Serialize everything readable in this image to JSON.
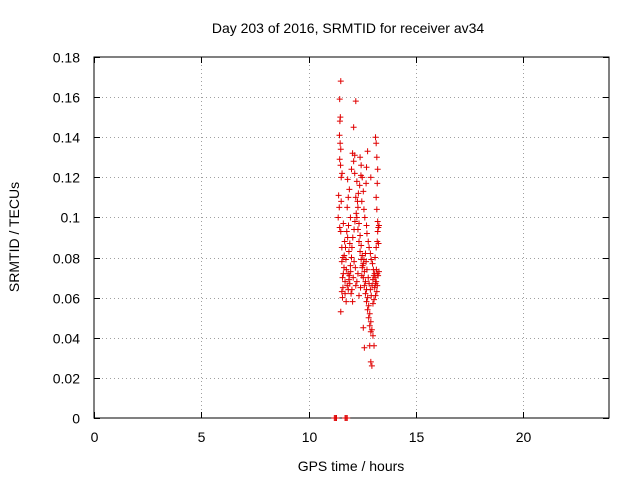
{
  "chart_data": {
    "type": "scatter",
    "title": "Day 203 of 2016, SRMTID for receiver av34",
    "xlabel": "GPS time / hours",
    "ylabel": "SRMTID / TECUs",
    "xlim": [
      0,
      24
    ],
    "ylim": [
      0,
      0.18
    ],
    "x_ticks": [
      0,
      5,
      10,
      15,
      20
    ],
    "x_tick_labels": [
      "0",
      "5",
      "10",
      "15",
      "20"
    ],
    "y_ticks": [
      0,
      0.02,
      0.04,
      0.06,
      0.08,
      0.1,
      0.12,
      0.14,
      0.16,
      0.18
    ],
    "y_tick_labels": [
      "0",
      "0.02",
      "0.04",
      "0.06",
      "0.08",
      "0.1",
      "0.12",
      "0.14",
      "0.16",
      "0.18"
    ],
    "grid": true,
    "marker": "+",
    "marker_color": "#e00000",
    "series": [
      {
        "name": "SRMTID",
        "points": [
          [
            11.2,
            0.0
          ],
          [
            11.25,
            0.0
          ],
          [
            11.3,
            0.0
          ],
          [
            11.7,
            0.0
          ],
          [
            11.75,
            0.0
          ],
          [
            11.8,
            0.0
          ],
          [
            11.5,
            0.168
          ],
          [
            11.45,
            0.159
          ],
          [
            11.48,
            0.15
          ],
          [
            11.46,
            0.148
          ],
          [
            11.44,
            0.141
          ],
          [
            11.47,
            0.137
          ],
          [
            11.5,
            0.134
          ],
          [
            11.45,
            0.129
          ],
          [
            11.49,
            0.126
          ],
          [
            11.52,
            0.12
          ],
          [
            11.4,
            0.111
          ],
          [
            11.43,
            0.105
          ],
          [
            11.38,
            0.1
          ],
          [
            11.45,
            0.095
          ],
          [
            11.5,
            0.093
          ],
          [
            11.55,
            0.085
          ],
          [
            11.6,
            0.08
          ],
          [
            11.55,
            0.078
          ],
          [
            11.65,
            0.075
          ],
          [
            11.62,
            0.072
          ],
          [
            11.58,
            0.07
          ],
          [
            11.7,
            0.068
          ],
          [
            11.6,
            0.065
          ],
          [
            11.55,
            0.063
          ],
          [
            11.58,
            0.06
          ],
          [
            11.5,
            0.053
          ],
          [
            11.75,
            0.058
          ],
          [
            11.7,
            0.062
          ],
          [
            11.8,
            0.066
          ],
          [
            11.85,
            0.064
          ],
          [
            11.9,
            0.071
          ],
          [
            11.95,
            0.076
          ],
          [
            12.0,
            0.08
          ],
          [
            11.88,
            0.083
          ],
          [
            11.92,
            0.087
          ],
          [
            11.82,
            0.09
          ],
          [
            11.78,
            0.093
          ],
          [
            11.86,
            0.096
          ],
          [
            11.95,
            0.1
          ],
          [
            11.8,
            0.105
          ],
          [
            11.85,
            0.11
          ],
          [
            11.9,
            0.114
          ],
          [
            11.82,
            0.119
          ],
          [
            12.0,
            0.124
          ],
          [
            12.1,
            0.128
          ],
          [
            12.05,
            0.132
          ],
          [
            12.15,
            0.131
          ],
          [
            12.1,
            0.145
          ],
          [
            12.2,
            0.158
          ],
          [
            12.15,
            0.122
          ],
          [
            12.25,
            0.118
          ],
          [
            12.2,
            0.11
          ],
          [
            12.3,
            0.105
          ],
          [
            12.25,
            0.1
          ],
          [
            12.35,
            0.097
          ],
          [
            12.3,
            0.094
          ],
          [
            12.4,
            0.091
          ],
          [
            12.35,
            0.088
          ],
          [
            12.45,
            0.086
          ],
          [
            12.4,
            0.083
          ],
          [
            12.5,
            0.081
          ],
          [
            12.45,
            0.079
          ],
          [
            12.55,
            0.077
          ],
          [
            12.5,
            0.075
          ],
          [
            12.6,
            0.073
          ],
          [
            12.55,
            0.07
          ],
          [
            12.65,
            0.068
          ],
          [
            12.6,
            0.066
          ],
          [
            12.7,
            0.064
          ],
          [
            12.65,
            0.062
          ],
          [
            12.75,
            0.06
          ],
          [
            12.7,
            0.058
          ],
          [
            12.8,
            0.056
          ],
          [
            12.75,
            0.054
          ],
          [
            12.85,
            0.052
          ],
          [
            12.8,
            0.05
          ],
          [
            12.9,
            0.048
          ],
          [
            12.85,
            0.046
          ],
          [
            12.95,
            0.044
          ],
          [
            12.9,
            0.043
          ],
          [
            13.0,
            0.041
          ],
          [
            12.55,
            0.045
          ],
          [
            12.6,
            0.035
          ],
          [
            12.85,
            0.036
          ],
          [
            12.9,
            0.028
          ],
          [
            12.95,
            0.026
          ],
          [
            13.05,
            0.036
          ],
          [
            12.4,
            0.13
          ],
          [
            12.45,
            0.126
          ],
          [
            12.5,
            0.12
          ],
          [
            12.55,
            0.113
          ],
          [
            12.48,
            0.108
          ],
          [
            12.58,
            0.104
          ],
          [
            12.62,
            0.1
          ],
          [
            12.7,
            0.096
          ],
          [
            12.72,
            0.092
          ],
          [
            12.78,
            0.088
          ],
          [
            12.82,
            0.085
          ],
          [
            12.88,
            0.082
          ],
          [
            12.92,
            0.079
          ],
          [
            12.98,
            0.077
          ],
          [
            13.02,
            0.074
          ],
          [
            13.08,
            0.072
          ],
          [
            13.1,
            0.07
          ],
          [
            13.15,
            0.068
          ],
          [
            13.2,
            0.066
          ],
          [
            13.18,
            0.063
          ],
          [
            13.12,
            0.061
          ],
          [
            13.05,
            0.059
          ],
          [
            13.0,
            0.057
          ],
          [
            13.1,
            0.08
          ],
          [
            13.15,
            0.085
          ],
          [
            13.2,
            0.088
          ],
          [
            13.25,
            0.095
          ],
          [
            13.22,
            0.098
          ],
          [
            13.18,
            0.104
          ],
          [
            13.15,
            0.11
          ],
          [
            13.2,
            0.117
          ],
          [
            13.22,
            0.124
          ],
          [
            13.18,
            0.13
          ],
          [
            13.15,
            0.137
          ],
          [
            13.12,
            0.14
          ],
          [
            12.7,
            0.125
          ],
          [
            12.75,
            0.133
          ],
          [
            12.68,
            0.117
          ],
          [
            12.9,
            0.12
          ],
          [
            12.3,
            0.072
          ],
          [
            12.25,
            0.068
          ],
          [
            12.2,
            0.066
          ],
          [
            12.18,
            0.075
          ],
          [
            12.12,
            0.078
          ],
          [
            12.08,
            0.07
          ],
          [
            12.02,
            0.064
          ],
          [
            11.98,
            0.062
          ],
          [
            12.05,
            0.058
          ],
          [
            12.35,
            0.061
          ],
          [
            12.42,
            0.065
          ],
          [
            12.48,
            0.071
          ],
          [
            12.52,
            0.076
          ],
          [
            12.58,
            0.079
          ],
          [
            12.65,
            0.082
          ],
          [
            12.68,
            0.078
          ],
          [
            12.72,
            0.074
          ],
          [
            12.78,
            0.07
          ],
          [
            12.82,
            0.067
          ],
          [
            12.88,
            0.064
          ],
          [
            12.92,
            0.061
          ],
          [
            12.96,
            0.066
          ],
          [
            13.0,
            0.069
          ],
          [
            13.04,
            0.071
          ],
          [
            13.08,
            0.065
          ],
          [
            13.12,
            0.067
          ],
          [
            13.16,
            0.074
          ],
          [
            13.2,
            0.072
          ],
          [
            13.24,
            0.071
          ],
          [
            13.28,
            0.073
          ],
          [
            13.26,
            0.087
          ],
          [
            13.22,
            0.093
          ],
          [
            13.28,
            0.096
          ],
          [
            11.62,
            0.097
          ],
          [
            11.68,
            0.088
          ],
          [
            11.72,
            0.085
          ],
          [
            11.66,
            0.081
          ],
          [
            11.74,
            0.079
          ],
          [
            11.76,
            0.074
          ],
          [
            11.84,
            0.072
          ],
          [
            11.88,
            0.069
          ],
          [
            11.92,
            0.067
          ],
          [
            11.96,
            0.073
          ],
          [
            12.02,
            0.085
          ],
          [
            12.06,
            0.09
          ],
          [
            12.12,
            0.094
          ],
          [
            12.16,
            0.098
          ],
          [
            12.22,
            0.102
          ],
          [
            12.28,
            0.108
          ],
          [
            12.32,
            0.112
          ],
          [
            12.38,
            0.116
          ],
          [
            12.44,
            0.121
          ],
          [
            11.56,
            0.122
          ],
          [
            11.52,
            0.108
          ]
        ]
      }
    ]
  }
}
